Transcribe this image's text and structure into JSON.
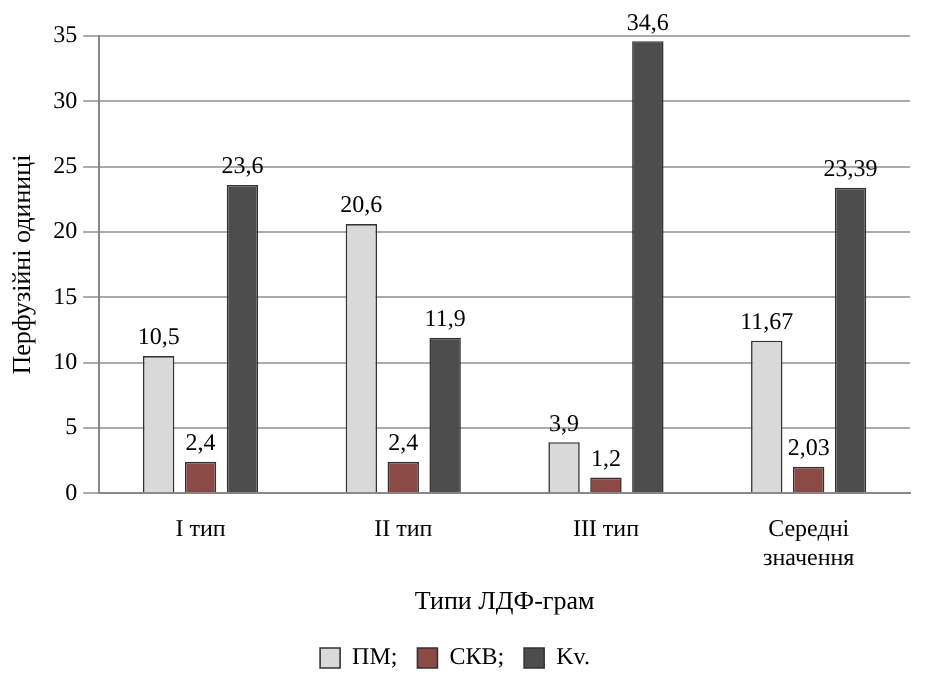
{
  "chart_data": {
    "type": "bar",
    "xlabel": "Типи ЛДФ-грам",
    "ylabel": "Перфузійні одиниці",
    "categories": [
      "I тип",
      "II тип",
      "III тип",
      "Середні значення"
    ],
    "series": [
      {
        "name": "ПМ;",
        "color": "#d9d9d9",
        "values": [
          10.5,
          20.6,
          3.9,
          11.67
        ],
        "value_labels": [
          "10,5",
          "20,6",
          "3,9",
          "11,67"
        ]
      },
      {
        "name": "СКВ;",
        "color": "#8b4a45",
        "values": [
          2.4,
          2.4,
          1.2,
          2.03
        ],
        "value_labels": [
          "2,4",
          "2,4",
          "1,2",
          "2,03"
        ]
      },
      {
        "name": "Kv.",
        "color": "#4d4d4d",
        "values": [
          23.6,
          11.9,
          34.6,
          23.39
        ],
        "value_labels": [
          "23,6",
          "11,9",
          "34,6",
          "23,39"
        ]
      }
    ],
    "ylim": [
      0,
      35
    ],
    "yticks": [
      0,
      5,
      10,
      15,
      20,
      25,
      30,
      35
    ],
    "grid": "y",
    "legend": "bottom"
  }
}
